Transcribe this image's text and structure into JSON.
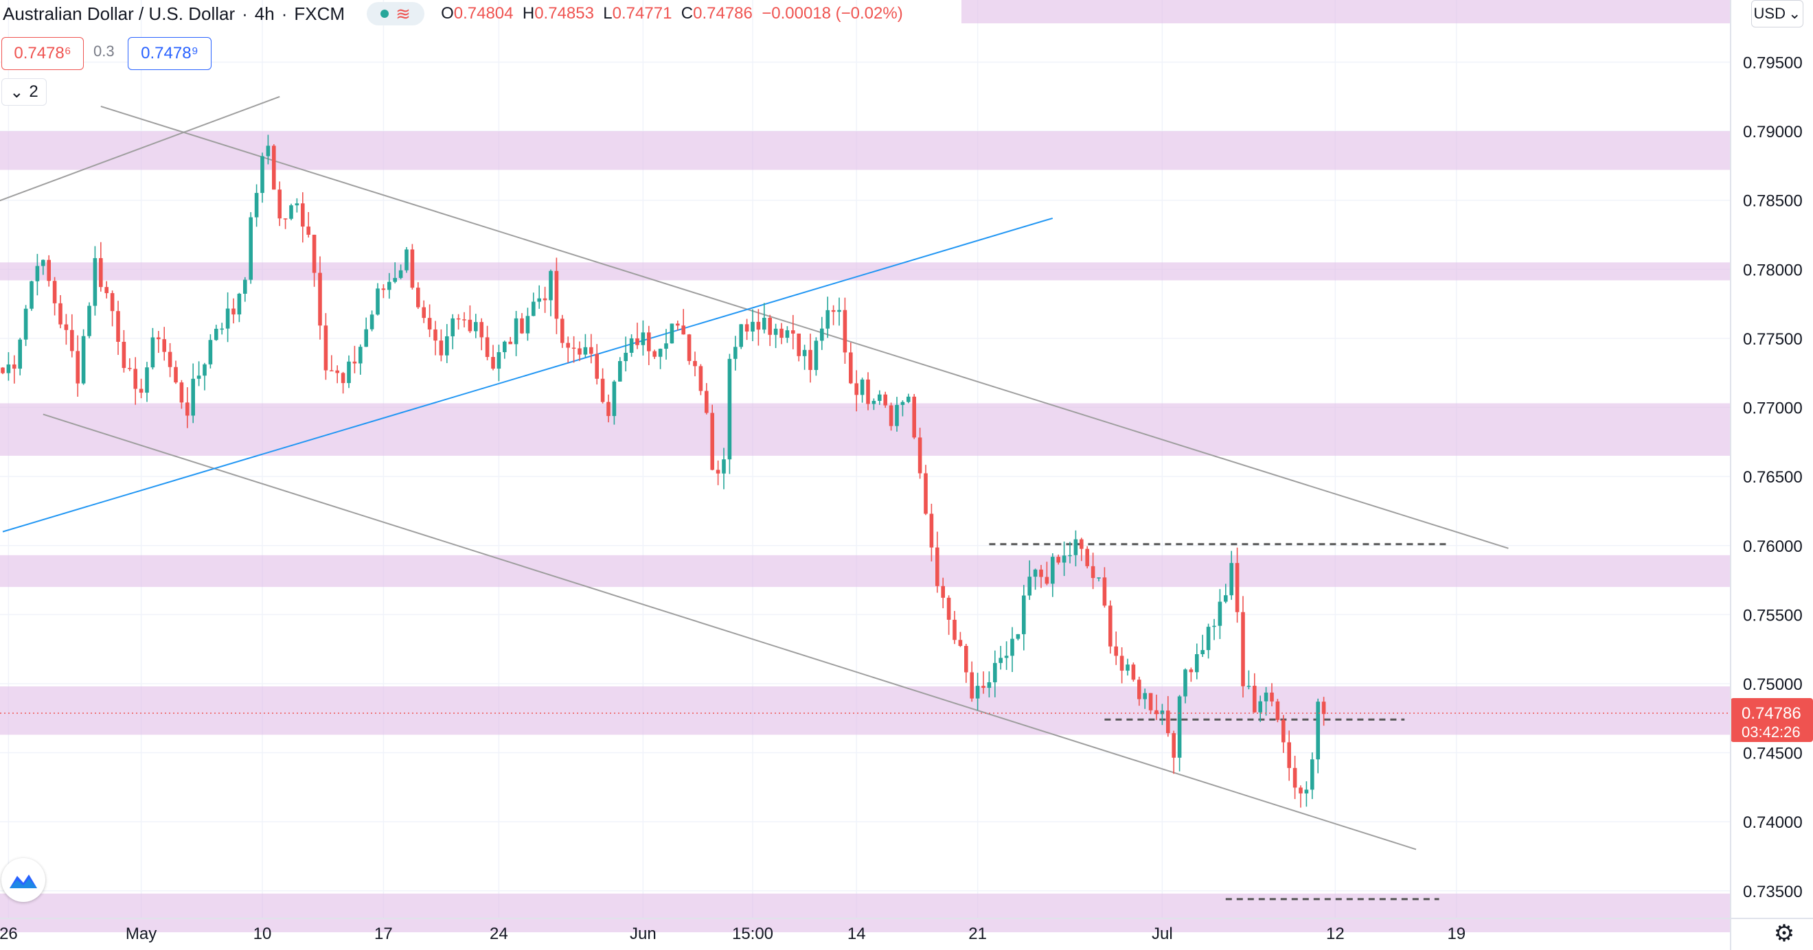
{
  "header": {
    "symbol": "Australian Dollar / U.S. Dollar",
    "interval": "4h",
    "exchange": "FXCM",
    "open_label": "O",
    "open": "0.74804",
    "high_label": "H",
    "high": "0.74853",
    "low_label": "L",
    "low": "0.74771",
    "close_label": "C",
    "close": "0.74786",
    "change": "−0.00018 (−0.02%)"
  },
  "trade": {
    "sell_price": "0.7478⁶",
    "spread": "0.3",
    "buy_price": "0.7478⁹"
  },
  "indicators": {
    "count": "2"
  },
  "currency": "USD",
  "colors": {
    "up": "#26a69a",
    "down": "#ef5350",
    "zone": "#e1bee7",
    "channel": "#9e9e9e",
    "trendline": "#2196f3",
    "price_label": "#ef5350"
  },
  "chart_data": {
    "type": "candlestick",
    "pair": "AUD/USD",
    "timeframe": "4h",
    "y_axis": {
      "min": 0.733,
      "max": 0.7995,
      "ticks": [
        0.735,
        0.74,
        0.745,
        0.75,
        0.755,
        0.76,
        0.765,
        0.77,
        0.775,
        0.78,
        0.785,
        0.79,
        0.795
      ],
      "tick_labels": [
        "0.73500",
        "0.74000",
        "0.74500",
        "0.75000",
        "0.75500",
        "0.76000",
        "0.76500",
        "0.77000",
        "0.77500",
        "0.78000",
        "0.78500",
        "0.79000",
        "0.79500"
      ]
    },
    "x_axis": {
      "labels": [
        {
          "text": "26",
          "bar": 1
        },
        {
          "text": "May",
          "bar": 24
        },
        {
          "text": "10",
          "bar": 45
        },
        {
          "text": "17",
          "bar": 66
        },
        {
          "text": "24",
          "bar": 86
        },
        {
          "text": "Jun",
          "bar": 111
        },
        {
          "text": "15:00",
          "bar": 130
        },
        {
          "text": "14",
          "bar": 148
        },
        {
          "text": "21",
          "bar": 169
        },
        {
          "text": "Jul",
          "bar": 201
        },
        {
          "text": "12",
          "bar": 231
        },
        {
          "text": "19",
          "bar": 252
        }
      ],
      "total_bars": 266
    },
    "last_price": {
      "value": 0.74786,
      "label": "0.74786",
      "countdown": "03:42:26"
    },
    "series": [
      {
        "anchors": [
          [
            0,
            0.7725
          ],
          [
            2,
            0.7735
          ],
          [
            6,
            0.781
          ],
          [
            8,
            0.779
          ],
          [
            13,
            0.7725
          ],
          [
            16,
            0.7805
          ],
          [
            19,
            0.777
          ],
          [
            22,
            0.772
          ],
          [
            23,
            0.7705
          ],
          [
            27,
            0.7755
          ],
          [
            30,
            0.7715
          ],
          [
            32,
            0.77
          ],
          [
            37,
            0.776
          ],
          [
            40,
            0.777
          ],
          [
            42,
            0.78
          ],
          [
            44,
            0.786
          ],
          [
            46,
            0.789
          ],
          [
            48,
            0.7835
          ],
          [
            51,
            0.7845
          ],
          [
            53,
            0.783
          ],
          [
            56,
            0.7735
          ],
          [
            59,
            0.7715
          ],
          [
            62,
            0.7745
          ],
          [
            65,
            0.778
          ],
          [
            70,
            0.781
          ],
          [
            73,
            0.776
          ],
          [
            76,
            0.773
          ],
          [
            78,
            0.776
          ],
          [
            82,
            0.7765
          ],
          [
            85,
            0.773
          ],
          [
            88,
            0.775
          ],
          [
            92,
            0.7775
          ],
          [
            95,
            0.779
          ],
          [
            97,
            0.774
          ],
          [
            100,
            0.7745
          ],
          [
            103,
            0.7725
          ],
          [
            105,
            0.77
          ],
          [
            107,
            0.773
          ],
          [
            110,
            0.775
          ],
          [
            113,
            0.7745
          ],
          [
            116,
            0.776
          ],
          [
            119,
            0.774
          ],
          [
            121,
            0.772
          ],
          [
            122,
            0.77
          ],
          [
            123,
            0.7655
          ],
          [
            125,
            0.7665
          ],
          [
            126,
            0.774
          ],
          [
            128,
            0.7755
          ],
          [
            130,
            0.7768
          ],
          [
            133,
            0.776
          ],
          [
            137,
            0.7755
          ],
          [
            140,
            0.7728
          ],
          [
            142,
            0.776
          ],
          [
            145,
            0.7768
          ],
          [
            147,
            0.772
          ],
          [
            150,
            0.771
          ],
          [
            152,
            0.7715
          ],
          [
            154,
            0.7695
          ],
          [
            157,
            0.771
          ],
          [
            159,
            0.7645
          ],
          [
            161,
            0.76
          ],
          [
            163,
            0.7555
          ],
          [
            166,
            0.752
          ],
          [
            168,
            0.749
          ],
          [
            170,
            0.749
          ],
          [
            172,
            0.7515
          ],
          [
            174,
            0.7515
          ],
          [
            176,
            0.7535
          ],
          [
            178,
            0.7575
          ],
          [
            181,
            0.758
          ],
          [
            184,
            0.759
          ],
          [
            186,
            0.76
          ],
          [
            188,
            0.7585
          ],
          [
            190,
            0.757
          ],
          [
            192,
            0.7535
          ],
          [
            194,
            0.751
          ],
          [
            196,
            0.75
          ],
          [
            198,
            0.749
          ],
          [
            201,
            0.748
          ],
          [
            203,
            0.7455
          ],
          [
            205,
            0.751
          ],
          [
            208,
            0.753
          ],
          [
            211,
            0.7555
          ],
          [
            213,
            0.758
          ],
          [
            214,
            0.755
          ],
          [
            215,
            0.75
          ],
          [
            217,
            0.7485
          ],
          [
            219,
            0.7495
          ],
          [
            220,
            0.748
          ],
          [
            222,
            0.7465
          ],
          [
            224,
            0.7425
          ],
          [
            226,
            0.7425
          ],
          [
            227,
            0.7445
          ],
          [
            228,
            0.749
          ],
          [
            229,
            0.7478
          ]
        ]
      }
    ],
    "zones": [
      [
        0.7872,
        0.79
      ],
      [
        0.7792,
        0.7805
      ],
      [
        0.7665,
        0.7703
      ],
      [
        0.757,
        0.7593
      ],
      [
        0.7463,
        0.7498
      ],
      [
        0.732,
        0.7348
      ]
    ],
    "channel_lines": [
      [
        [
          -10,
          0.7835
        ],
        [
          48,
          0.7925
        ]
      ],
      [
        [
          17,
          0.7918
        ],
        [
          261,
          0.7598
        ]
      ],
      [
        [
          7,
          0.7695
        ],
        [
          245,
          0.738
        ]
      ],
      [
        [
          0,
          0.761
        ],
        [
          182,
          0.7837
        ]
      ]
    ],
    "dashed_levels": [
      {
        "from": 171,
        "to": 251,
        "value": 0.7601
      },
      {
        "from": 191,
        "to": 243,
        "value": 0.7474
      },
      {
        "from": 212,
        "to": 249,
        "value": 0.7344
      }
    ]
  }
}
